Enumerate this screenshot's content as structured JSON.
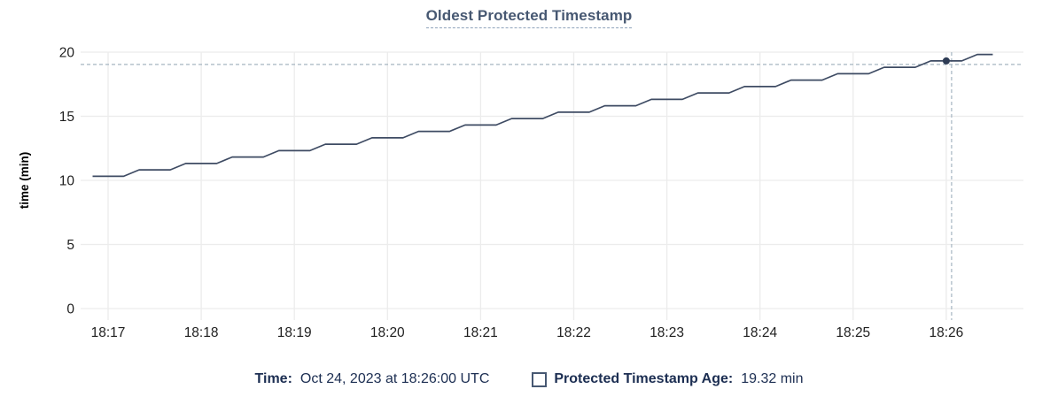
{
  "chart": {
    "title": "Oldest Protected Timestamp"
  },
  "legend": {
    "time_label": "Time:",
    "time_value": "Oct 24, 2023 at 18:26:00 UTC",
    "series_label": "Protected Timestamp Age:",
    "series_value": "19.32 min"
  },
  "colors": {
    "title": "#475872",
    "title_underline": "#8fa3bb",
    "line": "#3e4b63",
    "hover_dot": "#2e3c55",
    "grid": "#ececec",
    "crosshair": "#a6b5c1",
    "tick_label": "#1f1f1f",
    "axis_label": "#000000",
    "legend_text": "#1c2e52",
    "legend_swatch_border": "#475872"
  },
  "chart_data": {
    "type": "line",
    "title": "Oldest Protected Timestamp",
    "xlabel": "",
    "ylabel": "time (min)",
    "ylim": [
      0,
      20
    ],
    "y_ticks": [
      0,
      5,
      10,
      15,
      20
    ],
    "x_ticks": [
      "18:17",
      "18:18",
      "18:19",
      "18:20",
      "18:21",
      "18:22",
      "18:23",
      "18:24",
      "18:25",
      "18:26"
    ],
    "grid": true,
    "legend_position": "bottom",
    "series": [
      {
        "name": "Protected Timestamp Age",
        "unit": "min",
        "points": [
          [
            "18:16:50",
            10.32
          ],
          [
            "18:17:00",
            10.32
          ],
          [
            "18:17:10",
            10.32
          ],
          [
            "18:17:20",
            10.82
          ],
          [
            "18:17:30",
            10.82
          ],
          [
            "18:17:40",
            10.82
          ],
          [
            "18:17:50",
            11.32
          ],
          [
            "18:18:00",
            11.32
          ],
          [
            "18:18:10",
            11.32
          ],
          [
            "18:18:20",
            11.82
          ],
          [
            "18:18:30",
            11.82
          ],
          [
            "18:18:40",
            11.82
          ],
          [
            "18:18:50",
            12.32
          ],
          [
            "18:19:00",
            12.32
          ],
          [
            "18:19:10",
            12.32
          ],
          [
            "18:19:20",
            12.82
          ],
          [
            "18:19:30",
            12.82
          ],
          [
            "18:19:40",
            12.82
          ],
          [
            "18:19:50",
            13.32
          ],
          [
            "18:20:00",
            13.32
          ],
          [
            "18:20:10",
            13.32
          ],
          [
            "18:20:20",
            13.82
          ],
          [
            "18:20:30",
            13.82
          ],
          [
            "18:20:40",
            13.82
          ],
          [
            "18:20:50",
            14.32
          ],
          [
            "18:21:00",
            14.32
          ],
          [
            "18:21:10",
            14.32
          ],
          [
            "18:21:20",
            14.82
          ],
          [
            "18:21:30",
            14.82
          ],
          [
            "18:21:40",
            14.82
          ],
          [
            "18:21:50",
            15.32
          ],
          [
            "18:22:00",
            15.32
          ],
          [
            "18:22:10",
            15.32
          ],
          [
            "18:22:20",
            15.82
          ],
          [
            "18:22:30",
            15.82
          ],
          [
            "18:22:40",
            15.82
          ],
          [
            "18:22:50",
            16.32
          ],
          [
            "18:23:00",
            16.32
          ],
          [
            "18:23:10",
            16.32
          ],
          [
            "18:23:20",
            16.82
          ],
          [
            "18:23:30",
            16.82
          ],
          [
            "18:23:40",
            16.82
          ],
          [
            "18:23:50",
            17.32
          ],
          [
            "18:24:00",
            17.32
          ],
          [
            "18:24:10",
            17.32
          ],
          [
            "18:24:20",
            17.82
          ],
          [
            "18:24:30",
            17.82
          ],
          [
            "18:24:40",
            17.82
          ],
          [
            "18:24:50",
            18.32
          ],
          [
            "18:25:00",
            18.32
          ],
          [
            "18:25:10",
            18.32
          ],
          [
            "18:25:20",
            18.82
          ],
          [
            "18:25:30",
            18.82
          ],
          [
            "18:25:40",
            18.82
          ],
          [
            "18:25:50",
            19.32
          ],
          [
            "18:26:00",
            19.32
          ],
          [
            "18:26:10",
            19.32
          ],
          [
            "18:26:20",
            19.82
          ],
          [
            "18:26:30",
            19.82
          ]
        ]
      }
    ],
    "hover": {
      "time": "18:26:00",
      "value": 19.32,
      "time_display": "Oct 24, 2023 at 18:26:00 UTC",
      "value_display": "19.32 min"
    }
  }
}
